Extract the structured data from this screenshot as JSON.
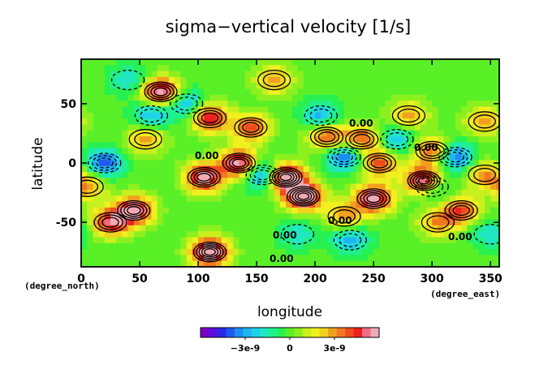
{
  "chart_data": {
    "type": "heatmap",
    "title": "sigma−vertical velocity [1/s]",
    "xlabel": "longitude",
    "ylabel": "latitude",
    "x_unit": "(degree_east)",
    "y_unit": "(degree_north)",
    "xlim": [
      0,
      357.5
    ],
    "ylim": [
      -87.5,
      87.5
    ],
    "x_ticks": [
      0,
      50,
      100,
      150,
      200,
      250,
      300,
      350
    ],
    "y_ticks": [
      -50,
      0,
      50
    ],
    "contour_labels": [
      "0.00",
      "0.00",
      "0.00",
      "0.00",
      "0.00",
      "0.00",
      "0.00"
    ],
    "colorbar": {
      "tick_labels": [
        "−3e-9",
        "0",
        "3e-9"
      ],
      "tick_values": [
        -3e-09,
        0,
        3e-09
      ],
      "range": [
        -6e-09,
        6e-09
      ],
      "colors": [
        "#7a00c8",
        "#5a10e0",
        "#2a2ae8",
        "#1e5af0",
        "#1e8cf0",
        "#1eb4f0",
        "#20d2e8",
        "#20e6c4",
        "#20f08c",
        "#28f050",
        "#5af028",
        "#8cf01e",
        "#c8f01e",
        "#f0f01e",
        "#f0d21e",
        "#f0a01e",
        "#f0781e",
        "#f04b1e",
        "#f01e1e",
        "#f06e82",
        "#f0aab4"
      ]
    },
    "features": [
      {
        "lon": 110,
        "lat": -75,
        "value": 7e-09
      },
      {
        "lon": 68,
        "lat": 60,
        "value": 6e-09
      },
      {
        "lon": 175,
        "lat": -12,
        "value": 7e-09
      },
      {
        "lon": 190,
        "lat": -28,
        "value": 7e-09
      },
      {
        "lon": 105,
        "lat": -12,
        "value": 6e-09
      },
      {
        "lon": 45,
        "lat": -40,
        "value": 6e-09
      },
      {
        "lon": 25,
        "lat": -50,
        "value": 5e-09
      },
      {
        "lon": 135,
        "lat": 0,
        "value": 6e-09
      },
      {
        "lon": 250,
        "lat": -30,
        "value": 6e-09
      },
      {
        "lon": 293,
        "lat": -15,
        "value": 7e-09
      },
      {
        "lon": 255,
        "lat": 0,
        "value": 4e-09
      },
      {
        "lon": 210,
        "lat": 22,
        "value": 4e-09
      },
      {
        "lon": 325,
        "lat": -40,
        "value": 4e-09
      },
      {
        "lon": 110,
        "lat": 38,
        "value": 5e-09
      },
      {
        "lon": 240,
        "lat": 20,
        "value": 4e-09
      },
      {
        "lon": 145,
        "lat": 30,
        "value": 4e-09
      },
      {
        "lon": 280,
        "lat": 40,
        "value": 3e-09
      },
      {
        "lon": 345,
        "lat": 35,
        "value": 3e-09
      },
      {
        "lon": 300,
        "lat": 10,
        "value": 4e-09
      },
      {
        "lon": 305,
        "lat": -50,
        "value": 3e-09
      },
      {
        "lon": 55,
        "lat": 20,
        "value": 3e-09
      },
      {
        "lon": 345,
        "lat": -10,
        "value": 3e-09
      },
      {
        "lon": 5,
        "lat": -20,
        "value": 3e-09
      },
      {
        "lon": 225,
        "lat": -45,
        "value": 3e-09
      },
      {
        "lon": 165,
        "lat": 70,
        "value": 3e-09
      },
      {
        "lon": 20,
        "lat": 0,
        "value": -4e-09
      },
      {
        "lon": 90,
        "lat": 50,
        "value": -3e-09
      },
      {
        "lon": 155,
        "lat": -10,
        "value": -4e-09
      },
      {
        "lon": 225,
        "lat": 5,
        "value": -4e-09
      },
      {
        "lon": 205,
        "lat": 40,
        "value": -3e-09
      },
      {
        "lon": 320,
        "lat": 5,
        "value": -4e-09
      },
      {
        "lon": 230,
        "lat": -65,
        "value": -3e-09
      },
      {
        "lon": 300,
        "lat": -20,
        "value": -3e-09
      },
      {
        "lon": 270,
        "lat": 20,
        "value": -3e-09
      },
      {
        "lon": 185,
        "lat": -60,
        "value": -2e-09
      },
      {
        "lon": 40,
        "lat": 70,
        "value": -2e-09
      },
      {
        "lon": 60,
        "lat": 40,
        "value": -3e-09
      },
      {
        "lon": 350,
        "lat": -60,
        "value": -2e-09
      }
    ]
  }
}
